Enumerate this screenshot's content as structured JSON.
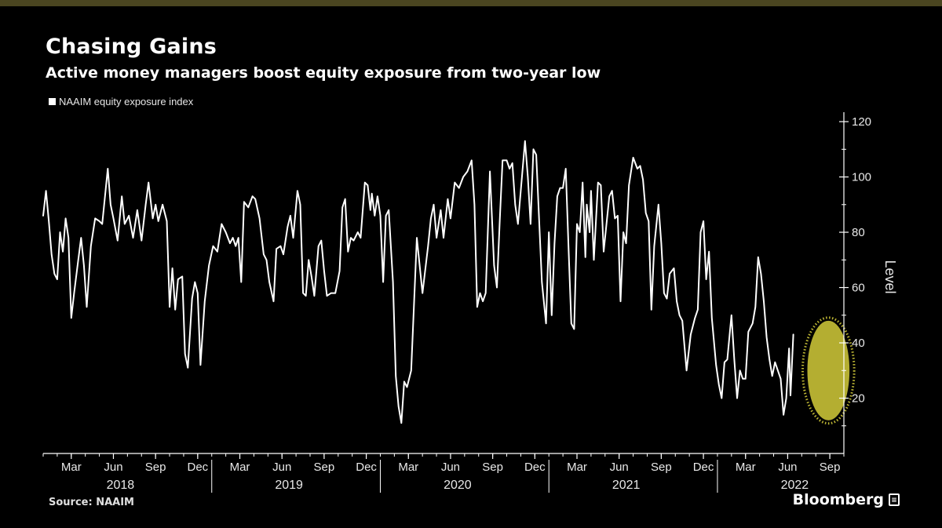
{
  "header": {
    "title": "Chasing Gains",
    "subtitle": "Active money managers boost equity exposure from two-year low"
  },
  "footer": {
    "source": "Source: NAAIM",
    "brand": "Bloomberg"
  },
  "colors": {
    "background": "#000000",
    "line": "#ffffff",
    "highlight": "#d4cc3a",
    "top_bar": "#4a4520"
  },
  "chart_data": {
    "type": "line",
    "title": "Chasing Gains",
    "subtitle": "Active money managers boost equity exposure from two-year low",
    "ylabel": "Level",
    "xlabel": "",
    "ylim": [
      0,
      122
    ],
    "yticks": [
      20,
      40,
      60,
      80,
      100,
      120
    ],
    "legend": "top-left",
    "grid": false,
    "x_range": [
      0,
      57
    ],
    "month_ticks": [
      {
        "label": "Mar",
        "x": 2
      },
      {
        "label": "Jun",
        "x": 5
      },
      {
        "label": "Sep",
        "x": 8
      },
      {
        "label": "Dec",
        "x": 11
      },
      {
        "label": "Mar",
        "x": 14
      },
      {
        "label": "Jun",
        "x": 17
      },
      {
        "label": "Sep",
        "x": 20
      },
      {
        "label": "Dec",
        "x": 23
      },
      {
        "label": "Mar",
        "x": 26
      },
      {
        "label": "Jun",
        "x": 29
      },
      {
        "label": "Sep",
        "x": 32
      },
      {
        "label": "Dec",
        "x": 35
      },
      {
        "label": "Mar",
        "x": 38
      },
      {
        "label": "Jun",
        "x": 41
      },
      {
        "label": "Sep",
        "x": 44
      },
      {
        "label": "Dec",
        "x": 47
      },
      {
        "label": "Mar",
        "x": 50
      },
      {
        "label": "Jun",
        "x": 53
      },
      {
        "label": "Sep",
        "x": 56
      }
    ],
    "year_labels": [
      {
        "label": "2018",
        "x": 5.5
      },
      {
        "label": "2019",
        "x": 17.5
      },
      {
        "label": "2020",
        "x": 29.5
      },
      {
        "label": "2021",
        "x": 41.5
      },
      {
        "label": "2022",
        "x": 53.5
      }
    ],
    "year_separators": [
      12,
      24,
      36,
      48
    ],
    "highlight": {
      "x_center": 55.9,
      "x_halfwidth": 1.5,
      "y_center": 30,
      "y_halfwidth": 18
    },
    "series": [
      {
        "name": "NAAIM equity exposure index",
        "points": [
          [
            0.0,
            86
          ],
          [
            0.2,
            95
          ],
          [
            0.4,
            84
          ],
          [
            0.6,
            72
          ],
          [
            0.8,
            65
          ],
          [
            1.0,
            63
          ],
          [
            1.2,
            80
          ],
          [
            1.4,
            73
          ],
          [
            1.6,
            85
          ],
          [
            1.8,
            78
          ],
          [
            2.0,
            49
          ],
          [
            2.2,
            58
          ],
          [
            2.5,
            70
          ],
          [
            2.7,
            78
          ],
          [
            2.9,
            68
          ],
          [
            3.1,
            53
          ],
          [
            3.4,
            75
          ],
          [
            3.7,
            85
          ],
          [
            4.0,
            84
          ],
          [
            4.2,
            83
          ],
          [
            4.6,
            103
          ],
          [
            4.8,
            90
          ],
          [
            5.0,
            85
          ],
          [
            5.3,
            77
          ],
          [
            5.6,
            93
          ],
          [
            5.8,
            83
          ],
          [
            6.1,
            86
          ],
          [
            6.4,
            78
          ],
          [
            6.7,
            88
          ],
          [
            7.0,
            77
          ],
          [
            7.3,
            90
          ],
          [
            7.5,
            98
          ],
          [
            7.8,
            85
          ],
          [
            8.0,
            90
          ],
          [
            8.2,
            84
          ],
          [
            8.5,
            90
          ],
          [
            8.8,
            84
          ],
          [
            9.0,
            53
          ],
          [
            9.2,
            67
          ],
          [
            9.4,
            52
          ],
          [
            9.6,
            63
          ],
          [
            9.9,
            64
          ],
          [
            10.1,
            36
          ],
          [
            10.3,
            31
          ],
          [
            10.6,
            56
          ],
          [
            10.8,
            62
          ],
          [
            11.0,
            58
          ],
          [
            11.2,
            32
          ],
          [
            11.5,
            55
          ],
          [
            11.8,
            68
          ],
          [
            12.1,
            75
          ],
          [
            12.4,
            73
          ],
          [
            12.7,
            83
          ],
          [
            13.0,
            80
          ],
          [
            13.3,
            76
          ],
          [
            13.5,
            78
          ],
          [
            13.7,
            75
          ],
          [
            13.9,
            78
          ],
          [
            14.1,
            62
          ],
          [
            14.3,
            91
          ],
          [
            14.6,
            89
          ],
          [
            14.9,
            93
          ],
          [
            15.1,
            92
          ],
          [
            15.4,
            85
          ],
          [
            15.7,
            72
          ],
          [
            15.9,
            70
          ],
          [
            16.1,
            62
          ],
          [
            16.4,
            55
          ],
          [
            16.6,
            74
          ],
          [
            16.9,
            75
          ],
          [
            17.1,
            72
          ],
          [
            17.4,
            82
          ],
          [
            17.6,
            86
          ],
          [
            17.8,
            78
          ],
          [
            18.1,
            95
          ],
          [
            18.3,
            90
          ],
          [
            18.5,
            58
          ],
          [
            18.7,
            57
          ],
          [
            18.9,
            70
          ],
          [
            19.1,
            64
          ],
          [
            19.3,
            57
          ],
          [
            19.6,
            75
          ],
          [
            19.8,
            77
          ],
          [
            20.0,
            66
          ],
          [
            20.2,
            57
          ],
          [
            20.5,
            58
          ],
          [
            20.8,
            58
          ],
          [
            21.1,
            66
          ],
          [
            21.3,
            89
          ],
          [
            21.5,
            92
          ],
          [
            21.7,
            73
          ],
          [
            21.9,
            78
          ],
          [
            22.1,
            77
          ],
          [
            22.4,
            80
          ],
          [
            22.6,
            78
          ],
          [
            22.9,
            98
          ],
          [
            23.1,
            97
          ],
          [
            23.3,
            88
          ],
          [
            23.4,
            94
          ],
          [
            23.6,
            86
          ],
          [
            23.8,
            93
          ],
          [
            24.0,
            86
          ],
          [
            24.2,
            62
          ],
          [
            24.4,
            86
          ],
          [
            24.6,
            88
          ],
          [
            24.9,
            62
          ],
          [
            25.1,
            28
          ],
          [
            25.3,
            17
          ],
          [
            25.5,
            11
          ],
          [
            25.7,
            26
          ],
          [
            25.9,
            24
          ],
          [
            26.2,
            30
          ],
          [
            26.6,
            78
          ],
          [
            27.0,
            58
          ],
          [
            27.4,
            75
          ],
          [
            27.6,
            85
          ],
          [
            27.8,
            90
          ],
          [
            28.0,
            78
          ],
          [
            28.3,
            88
          ],
          [
            28.5,
            78
          ],
          [
            28.8,
            92
          ],
          [
            29.0,
            85
          ],
          [
            29.3,
            98
          ],
          [
            29.6,
            96
          ],
          [
            29.9,
            100
          ],
          [
            30.2,
            102
          ],
          [
            30.5,
            106
          ],
          [
            30.7,
            90
          ],
          [
            30.9,
            53
          ],
          [
            31.1,
            58
          ],
          [
            31.3,
            55
          ],
          [
            31.5,
            58
          ],
          [
            31.8,
            102
          ],
          [
            32.1,
            68
          ],
          [
            32.3,
            60
          ],
          [
            32.5,
            84
          ],
          [
            32.7,
            106
          ],
          [
            33.0,
            106
          ],
          [
            33.2,
            103
          ],
          [
            33.4,
            105
          ],
          [
            33.6,
            90
          ],
          [
            33.8,
            83
          ],
          [
            34.0,
            95
          ],
          [
            34.3,
            113
          ],
          [
            34.5,
            100
          ],
          [
            34.7,
            83
          ],
          [
            34.9,
            110
          ],
          [
            35.1,
            108
          ],
          [
            35.3,
            85
          ],
          [
            35.5,
            62
          ],
          [
            35.8,
            47
          ],
          [
            36.0,
            80
          ],
          [
            36.2,
            50
          ],
          [
            36.4,
            76
          ],
          [
            36.6,
            93
          ],
          [
            36.8,
            96
          ],
          [
            37.0,
            96
          ],
          [
            37.2,
            103
          ],
          [
            37.4,
            74
          ],
          [
            37.6,
            47
          ],
          [
            37.8,
            45
          ],
          [
            38.0,
            83
          ],
          [
            38.2,
            80
          ],
          [
            38.4,
            98
          ],
          [
            38.6,
            71
          ],
          [
            38.7,
            90
          ],
          [
            38.9,
            80
          ],
          [
            39.0,
            95
          ],
          [
            39.2,
            70
          ],
          [
            39.5,
            98
          ],
          [
            39.7,
            97
          ],
          [
            39.9,
            73
          ],
          [
            40.1,
            83
          ],
          [
            40.3,
            93
          ],
          [
            40.5,
            95
          ],
          [
            40.7,
            85
          ],
          [
            40.9,
            86
          ],
          [
            41.1,
            55
          ],
          [
            41.3,
            80
          ],
          [
            41.5,
            76
          ],
          [
            41.7,
            97
          ],
          [
            42.0,
            107
          ],
          [
            42.3,
            103
          ],
          [
            42.5,
            104
          ],
          [
            42.7,
            99
          ],
          [
            42.9,
            87
          ],
          [
            43.1,
            84
          ],
          [
            43.3,
            52
          ],
          [
            43.5,
            75
          ],
          [
            43.8,
            90
          ],
          [
            44.0,
            76
          ],
          [
            44.2,
            58
          ],
          [
            44.4,
            56
          ],
          [
            44.6,
            65
          ],
          [
            44.9,
            67
          ],
          [
            45.1,
            55
          ],
          [
            45.3,
            50
          ],
          [
            45.5,
            48
          ],
          [
            45.8,
            30
          ],
          [
            46.1,
            43
          ],
          [
            46.4,
            49
          ],
          [
            46.6,
            52
          ],
          [
            46.8,
            80
          ],
          [
            47.0,
            84
          ],
          [
            47.2,
            63
          ],
          [
            47.4,
            73
          ],
          [
            47.6,
            49
          ],
          [
            47.9,
            32
          ],
          [
            48.1,
            25
          ],
          [
            48.3,
            20
          ],
          [
            48.5,
            33
          ],
          [
            48.7,
            34
          ],
          [
            49.0,
            50
          ],
          [
            49.2,
            34
          ],
          [
            49.4,
            20
          ],
          [
            49.6,
            30
          ],
          [
            49.8,
            27
          ],
          [
            50.0,
            27
          ],
          [
            50.2,
            44
          ],
          [
            50.5,
            47
          ],
          [
            50.7,
            53
          ],
          [
            50.9,
            71
          ],
          [
            51.1,
            65
          ],
          [
            51.3,
            55
          ],
          [
            51.5,
            42
          ],
          [
            51.7,
            34
          ],
          [
            51.9,
            28
          ],
          [
            52.1,
            33
          ],
          [
            52.3,
            30
          ],
          [
            52.5,
            27
          ],
          [
            52.7,
            14
          ],
          [
            52.9,
            20
          ],
          [
            53.1,
            38
          ],
          [
            53.2,
            21
          ],
          [
            53.4,
            43
          ]
        ]
      }
    ]
  }
}
